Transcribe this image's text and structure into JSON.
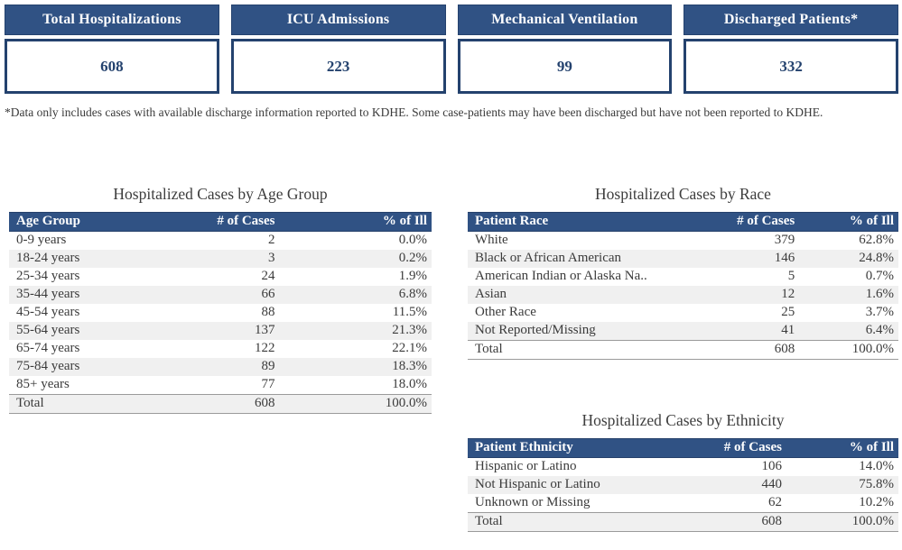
{
  "cards": [
    {
      "label": "Total Hospitalizations",
      "value": "608"
    },
    {
      "label": "ICU Admissions",
      "value": "223"
    },
    {
      "label": "Mechanical Ventilation",
      "value": "99"
    },
    {
      "label": "Discharged Patients*",
      "value": "332"
    }
  ],
  "footnote": "*Data only includes cases with available discharge information reported to KDHE.  Some case-patients may have been discharged but have not been reported to KDHE.",
  "chart_data": [
    {
      "type": "table",
      "title": "Hospitalized Cases by Age Group",
      "columns": [
        "Age Group",
        "# of Cases",
        "% of Ill"
      ],
      "rows": [
        [
          "0-9 years",
          "2",
          "0.0%"
        ],
        [
          "18-24 years",
          "3",
          "0.2%"
        ],
        [
          "25-34 years",
          "24",
          "1.9%"
        ],
        [
          "35-44 years",
          "66",
          "6.8%"
        ],
        [
          "45-54 years",
          "88",
          "11.5%"
        ],
        [
          "55-64 years",
          "137",
          "21.3%"
        ],
        [
          "65-74 years",
          "122",
          "22.1%"
        ],
        [
          "75-84 years",
          "89",
          "18.3%"
        ],
        [
          "85+ years",
          "77",
          "18.0%"
        ]
      ],
      "total": [
        "Total",
        "608",
        "100.0%"
      ]
    },
    {
      "type": "table",
      "title": "Hospitalized Cases by Race",
      "columns": [
        "Patient Race",
        "# of Cases",
        "% of Ill"
      ],
      "rows": [
        [
          "White",
          "379",
          "62.8%"
        ],
        [
          "Black or African American",
          "146",
          "24.8%"
        ],
        [
          "American Indian or Alaska Na..",
          "5",
          "0.7%"
        ],
        [
          "Asian",
          "12",
          "1.6%"
        ],
        [
          "Other Race",
          "25",
          "3.7%"
        ],
        [
          "Not Reported/Missing",
          "41",
          "6.4%"
        ]
      ],
      "total": [
        "Total",
        "608",
        "100.0%"
      ]
    },
    {
      "type": "table",
      "title": "Hospitalized Cases by Ethnicity",
      "columns": [
        "Patient Ethnicity",
        "# of Cases",
        "% of Ill"
      ],
      "rows": [
        [
          "Hispanic or Latino",
          "106",
          "14.0%"
        ],
        [
          "Not Hispanic or Latino",
          "440",
          "75.8%"
        ],
        [
          "Unknown or Missing",
          "62",
          "10.2%"
        ]
      ],
      "total": [
        "Total",
        "608",
        "100.0%"
      ]
    }
  ],
  "colors": {
    "header_blue": "#305284",
    "dark_navy_border": "#24426E",
    "alt_row_gray": "#F0F0F0"
  }
}
